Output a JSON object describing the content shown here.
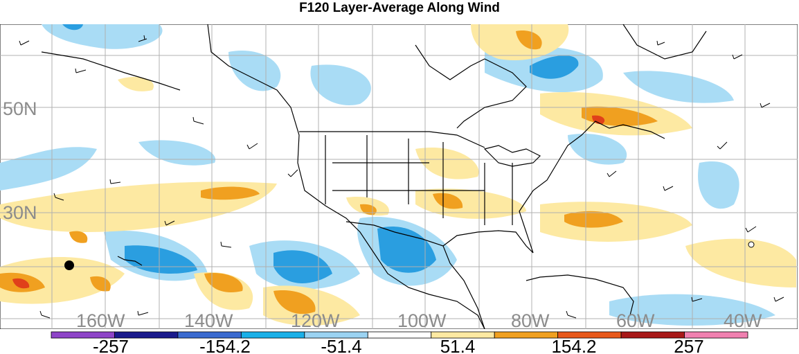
{
  "title": "F120 Layer-Average Along Wind",
  "map": {
    "lat_labels": [
      {
        "text": "50N",
        "lat": 50
      },
      {
        "text": "30N",
        "lat": 30
      }
    ],
    "lon_labels": [
      {
        "text": "160W",
        "lon": -160
      },
      {
        "text": "140W",
        "lon": -140
      },
      {
        "text": "120W",
        "lon": -120
      },
      {
        "text": "100W",
        "lon": -100
      },
      {
        "text": "80W",
        "lon": -80
      },
      {
        "text": "60W",
        "lon": -60
      },
      {
        "text": "40W",
        "lon": -40
      }
    ],
    "colors": {
      "strong_negative": "#2a9ee0",
      "negative": "#a9dcf5",
      "positive": "#fde9a2",
      "strong_positive": "#f0a020",
      "extreme_positive": "#e0401a",
      "coast": "#000000",
      "grid": "#b0b0b0",
      "barb": "#000000"
    }
  },
  "colorbar": {
    "colors": [
      "#8e44c8",
      "#1a1a8c",
      "#3a6ad0",
      "#1ab0e8",
      "#9bd3f2",
      "#ffffff",
      "#fde9a2",
      "#f0a020",
      "#e8581a",
      "#a81818",
      "#f080b0"
    ],
    "labels": [
      "-257",
      "-154.2",
      "-51.4",
      "51.4",
      "154.2",
      "257"
    ]
  }
}
